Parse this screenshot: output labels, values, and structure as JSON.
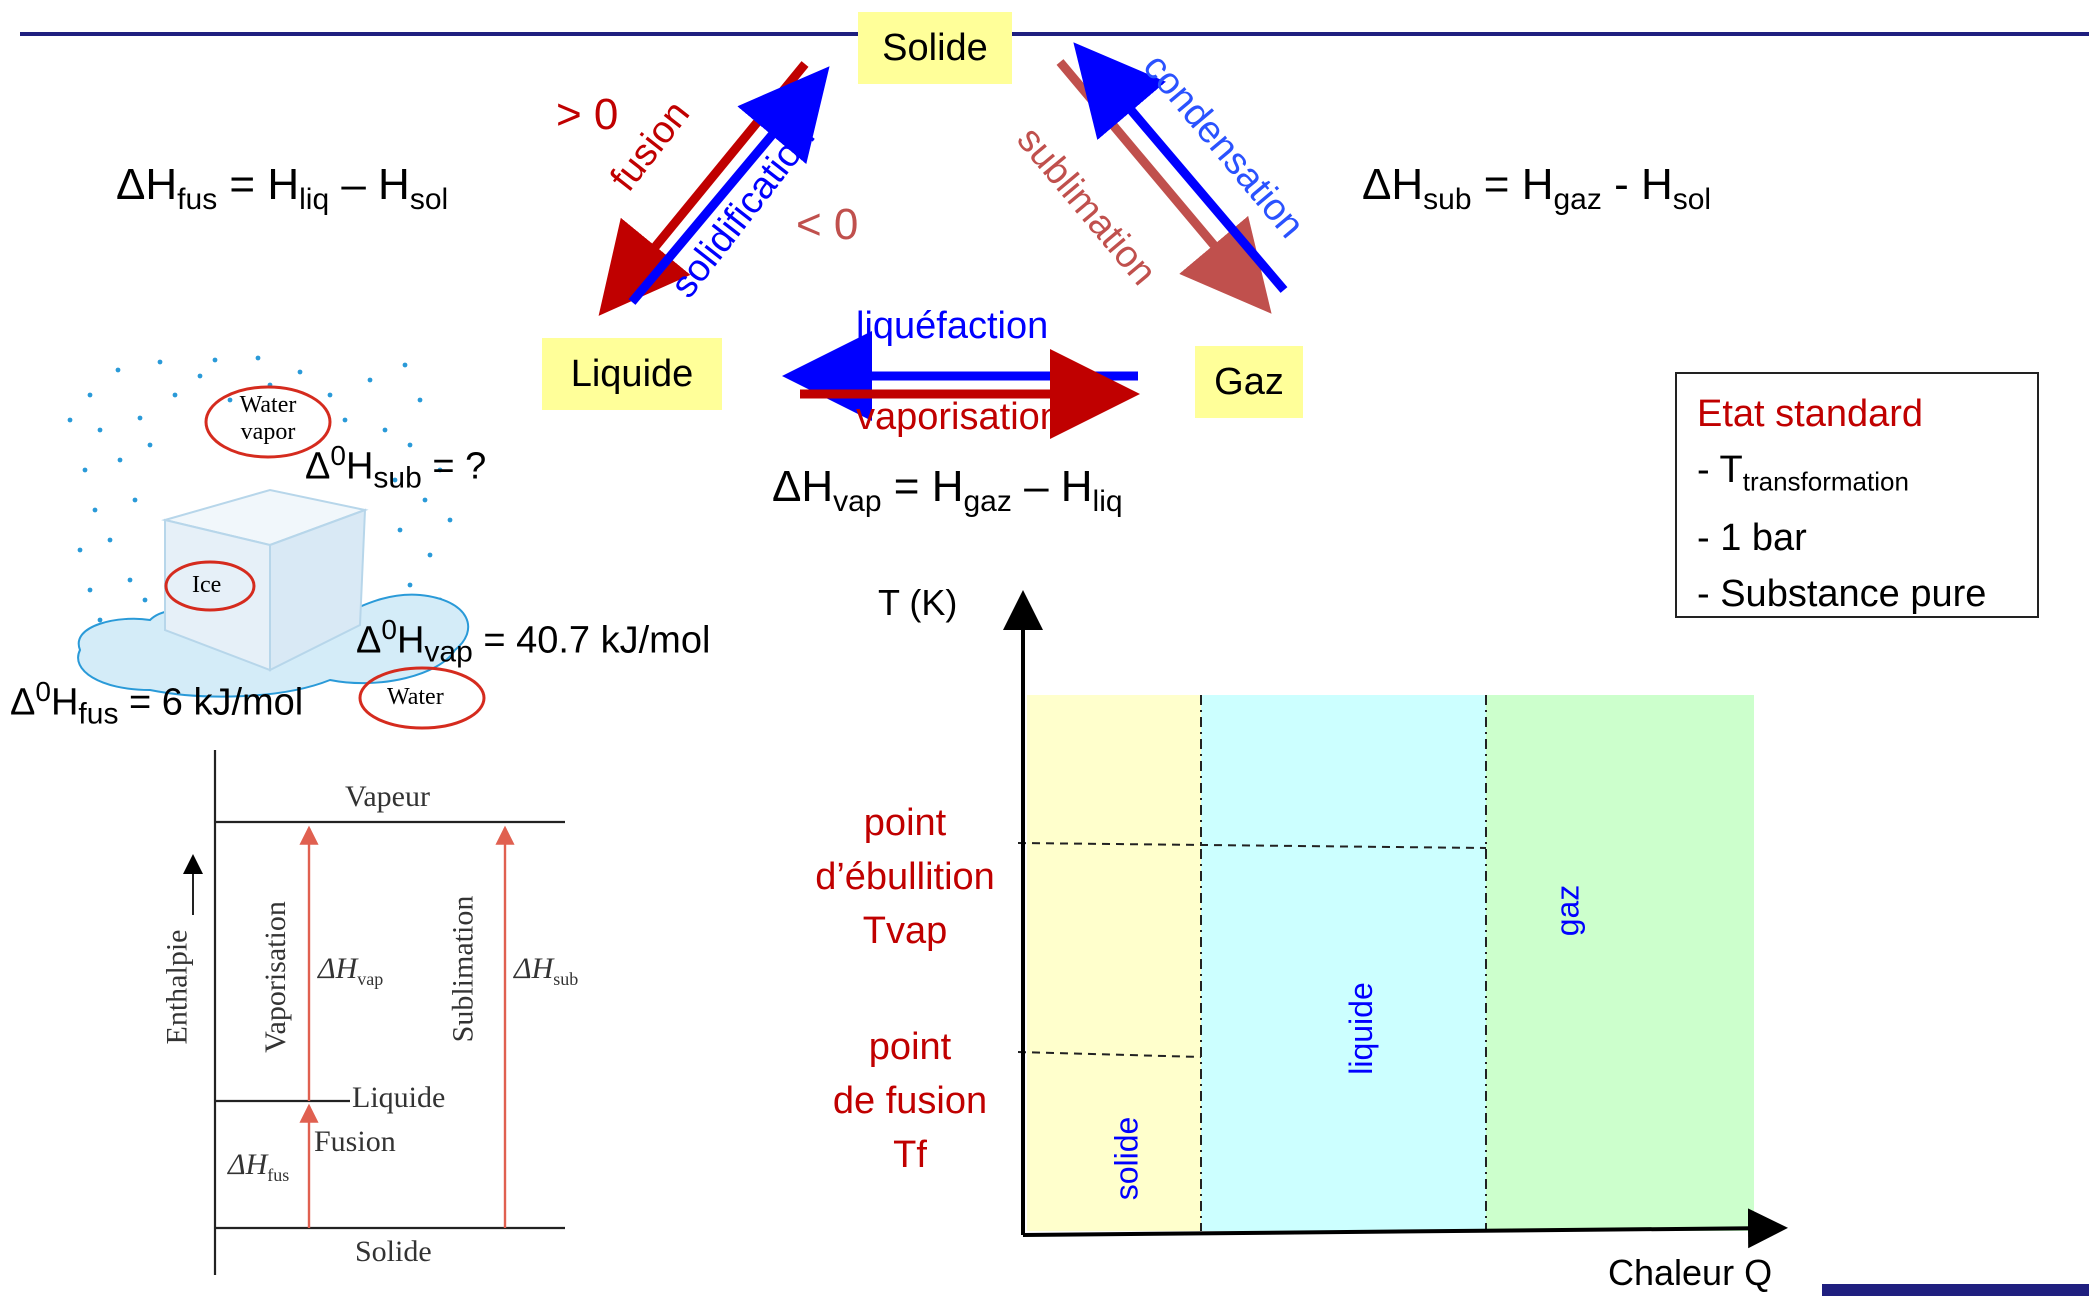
{
  "states": {
    "solide": "Solide",
    "liquide": "Liquide",
    "gaz": "Gaz"
  },
  "arrows": {
    "fusion": "fusion",
    "solidification": "solidification",
    "sublimation": "sublimation",
    "condensation": "condensation",
    "liquefaction": "liquéfaction",
    "vaporisation": "vaporisation",
    "gt0": "> 0",
    "lt0": "< 0"
  },
  "equations": {
    "fus": {
      "delta": "ΔH",
      "sub": "fus",
      "eq": " = H",
      "a_sub": "liq",
      "minus": " – H",
      "b_sub": "sol"
    },
    "sub": {
      "delta": "ΔH",
      "sub": "sub",
      "eq": " = H",
      "a_sub": "gaz",
      "minus": " - H",
      "b_sub": "sol"
    },
    "vap": {
      "delta": "ΔH",
      "sub": "vap",
      "eq": " = H",
      "a_sub": "gaz",
      "minus": " – H",
      "b_sub": "liq"
    }
  },
  "standard": {
    "title": "Etat standard",
    "line1_prefix": "- T",
    "line1_sub": "transformation",
    "line2": "- 1 bar",
    "line3": "- Substance pure"
  },
  "ice_figure": {
    "water_vapor_1": "Water",
    "water_vapor_2": "vapor",
    "ice": "Ice",
    "water": "Water",
    "sub_label": {
      "delta": "Δ",
      "sup": "0",
      "h": "H",
      "sub": "sub",
      "rest": " = ?"
    },
    "vap_label": {
      "delta": "Δ",
      "sup": "0",
      "h": "H",
      "sub": "vap",
      "rest": " = 40.7 kJ/mol"
    },
    "fus_label": {
      "delta": "Δ",
      "sup": "0",
      "h": "H",
      "sub": "fus",
      "rest": " = 6 kJ/mol"
    }
  },
  "enthalpy_diagram": {
    "axis": "Enthalpie",
    "vapeur": "Vapeur",
    "liquide": "Liquide",
    "solide": "Solide",
    "vaporisation": "Vaporisation",
    "sublimation": "Sublimation",
    "fusion": "Fusion",
    "dh_vap": {
      "d": "ΔH",
      "sub": "vap"
    },
    "dh_sub": {
      "d": "ΔH",
      "sub": "sub"
    },
    "dh_fus": {
      "d": "ΔH",
      "sub": "fus"
    }
  },
  "heating_chart": {
    "ylabel": "T (K)",
    "xlabel": "Chaleur Q",
    "boiling": [
      "point",
      "d’ébullition",
      "Tvap"
    ],
    "melting": [
      "point",
      "de fusion",
      "Tf"
    ],
    "regions": [
      "solide",
      "liquide",
      "gaz"
    ],
    "colors": {
      "solide": "#ffffcc",
      "liquide": "#ccffff",
      "gaz": "#ccffcc"
    }
  },
  "colors": {
    "rule": "#1f1f7f",
    "red": "#c00000",
    "blue": "#0000ff",
    "box": "#ffff99"
  }
}
